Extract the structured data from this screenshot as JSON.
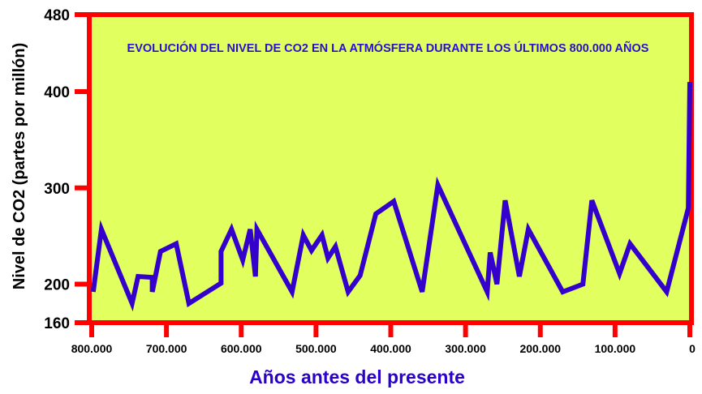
{
  "chart_data": {
    "type": "line",
    "title": "EVOLUCIÓN DEL NIVEL DE CO2 EN LA ATMÓSFERA DURANTE LOS ÚLTIMOS 800.000 AÑOS",
    "xlabel": "Años antes del presente",
    "ylabel": "Nivel de CO2 (partes por millón)",
    "xlim": [
      800000,
      0
    ],
    "ylim": [
      160,
      480
    ],
    "x_ticks": [
      {
        "value": 800000,
        "label": "800.000"
      },
      {
        "value": 700000,
        "label": "700.000"
      },
      {
        "value": 600000,
        "label": "600.000"
      },
      {
        "value": 500000,
        "label": "500.000"
      },
      {
        "value": 400000,
        "label": "400.000"
      },
      {
        "value": 300000,
        "label": "300.000"
      },
      {
        "value": 200000,
        "label": "200.000"
      },
      {
        "value": 100000,
        "label": "100.000"
      },
      {
        "value": 0,
        "label": "0"
      }
    ],
    "y_ticks": [
      {
        "value": 480,
        "label": "480"
      },
      {
        "value": 400,
        "label": "400"
      },
      {
        "value": 300,
        "label": "300"
      },
      {
        "value": 200,
        "label": "200"
      },
      {
        "value": 160,
        "label": "160"
      }
    ],
    "series": [
      {
        "name": "CO2",
        "color": "#3300cc",
        "x": [
          798000,
          787000,
          746000,
          738000,
          719000,
          719000,
          708000,
          687000,
          670000,
          627000,
          627000,
          613000,
          598000,
          588000,
          581000,
          579000,
          532000,
          517000,
          506000,
          492000,
          484000,
          474000,
          457000,
          441000,
          420000,
          396000,
          358000,
          337000,
          271000,
          267000,
          258000,
          247000,
          228000,
          216000,
          170000,
          143000,
          131000,
          94000,
          80000,
          31000,
          2000,
          0
        ],
        "y": [
          192,
          257,
          180,
          208,
          207,
          192,
          234,
          242,
          180,
          201,
          234,
          257,
          225,
          257,
          208,
          257,
          192,
          251,
          235,
          251,
          227,
          239,
          192,
          209,
          273,
          286,
          192,
          303,
          192,
          233,
          200,
          287,
          208,
          257,
          192,
          200,
          287,
          211,
          242,
          192,
          279,
          410
        ]
      }
    ],
    "colors": {
      "plot_bg": "#e2ff60",
      "frame": "#ff0000",
      "title": "#2a10cc",
      "xlabel": "#2a00cc"
    }
  }
}
